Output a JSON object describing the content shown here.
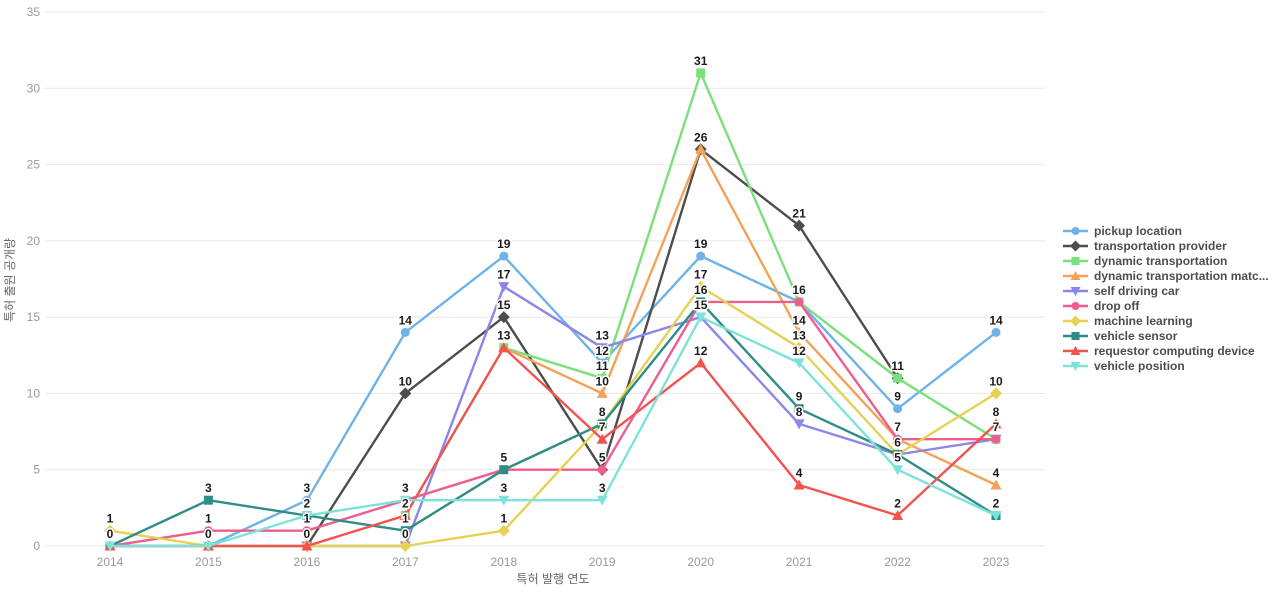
{
  "chart_data": {
    "type": "line",
    "title": "",
    "xlabel": "특허 발행 연도",
    "ylabel": "특허 출원 공개량",
    "categories": [
      "2014",
      "2015",
      "2016",
      "2017",
      "2018",
      "2019",
      "2020",
      "2021",
      "2022",
      "2023"
    ],
    "ylim": [
      0,
      35
    ],
    "y_ticks": [
      0,
      5,
      10,
      15,
      20,
      25,
      30,
      35
    ],
    "grid": true,
    "legend_position": "right",
    "background": "#ffffff",
    "colors": {
      "grid": "#e8e8e8",
      "tick_text": "#999999",
      "axis_title_text": "#666666",
      "point_label_text": "#1b1b1b",
      "legend_text": "#4d4d4d"
    },
    "series": [
      {
        "name": "pickup location",
        "color": "#6db3ea",
        "symbol": "circle",
        "values": [
          0,
          0,
          3,
          14,
          19,
          12,
          19,
          16,
          9,
          14
        ]
      },
      {
        "name": "transportation provider",
        "color": "#4d4d4d",
        "symbol": "diamond",
        "values": [
          null,
          null,
          0,
          10,
          15,
          5,
          26,
          21,
          11,
          null
        ]
      },
      {
        "name": "dynamic transportation",
        "color": "#7bdf7b",
        "symbol": "square",
        "values": [
          null,
          null,
          null,
          2,
          13,
          11,
          31,
          16,
          11,
          7
        ]
      },
      {
        "name": "dynamic transportation matc...",
        "color": "#f4a258",
        "symbol": "triangle-up",
        "values": [
          null,
          null,
          null,
          null,
          13,
          10,
          26,
          14,
          7,
          4
        ]
      },
      {
        "name": "self driving car",
        "color": "#8a87e8",
        "symbol": "triangle-down",
        "values": [
          null,
          0,
          0,
          0,
          17,
          13,
          15,
          8,
          6,
          7
        ]
      },
      {
        "name": "drop off",
        "color": "#ee5e8d",
        "symbol": "circle",
        "values": [
          0,
          1,
          1,
          3,
          5,
          5,
          16,
          16,
          7,
          7
        ]
      },
      {
        "name": "machine learning",
        "color": "#e5d252",
        "symbol": "diamond",
        "values": [
          1,
          0,
          0,
          0,
          1,
          8,
          17,
          13,
          6,
          10
        ]
      },
      {
        "name": "vehicle sensor",
        "color": "#2f8d85",
        "symbol": "square",
        "values": [
          0,
          3,
          2,
          1,
          5,
          8,
          16,
          9,
          6,
          2
        ]
      },
      {
        "name": "requestor computing device",
        "color": "#f1534f",
        "symbol": "triangle-up",
        "values": [
          0,
          0,
          0,
          2,
          13,
          7,
          12,
          4,
          2,
          8
        ]
      },
      {
        "name": "vehicle position",
        "color": "#7de3da",
        "symbol": "triangle-down",
        "values": [
          0,
          0,
          2,
          3,
          3,
          3,
          15,
          12,
          5,
          2
        ]
      }
    ]
  }
}
